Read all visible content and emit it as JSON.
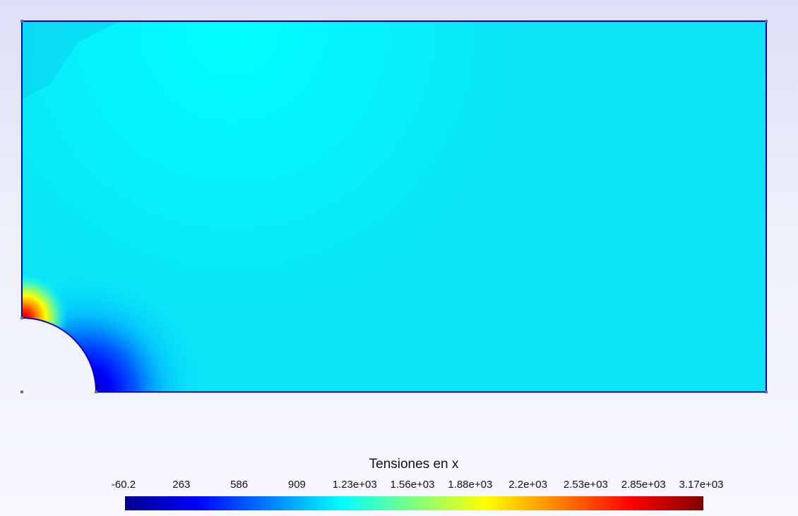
{
  "chart_data": {
    "type": "heatmap",
    "title": "",
    "field": "Tensiones en x",
    "colorbar": {
      "title": "Tensiones en x",
      "min": -60.2,
      "max": 3170,
      "colormap": "jet",
      "tick_values": [
        -60.2,
        263,
        586,
        909,
        1230,
        1560,
        1880,
        2200,
        2530,
        2850,
        3170
      ],
      "tick_labels": [
        "-60.2",
        "263",
        "586",
        "909",
        "1.23e+03",
        "1.56e+03",
        "1.88e+03",
        "2.2e+03",
        "2.53e+03",
        "2.85e+03",
        "3.17e+03"
      ]
    },
    "field_samples": {
      "background": 1050,
      "near_hole_top": 3170,
      "near_hole_side": 50
    },
    "geometry": "rectangular plate with quarter-circle hole at bottom-left corner",
    "colors": {
      "border": "#0000cc",
      "corner_markers": "#707070"
    }
  }
}
